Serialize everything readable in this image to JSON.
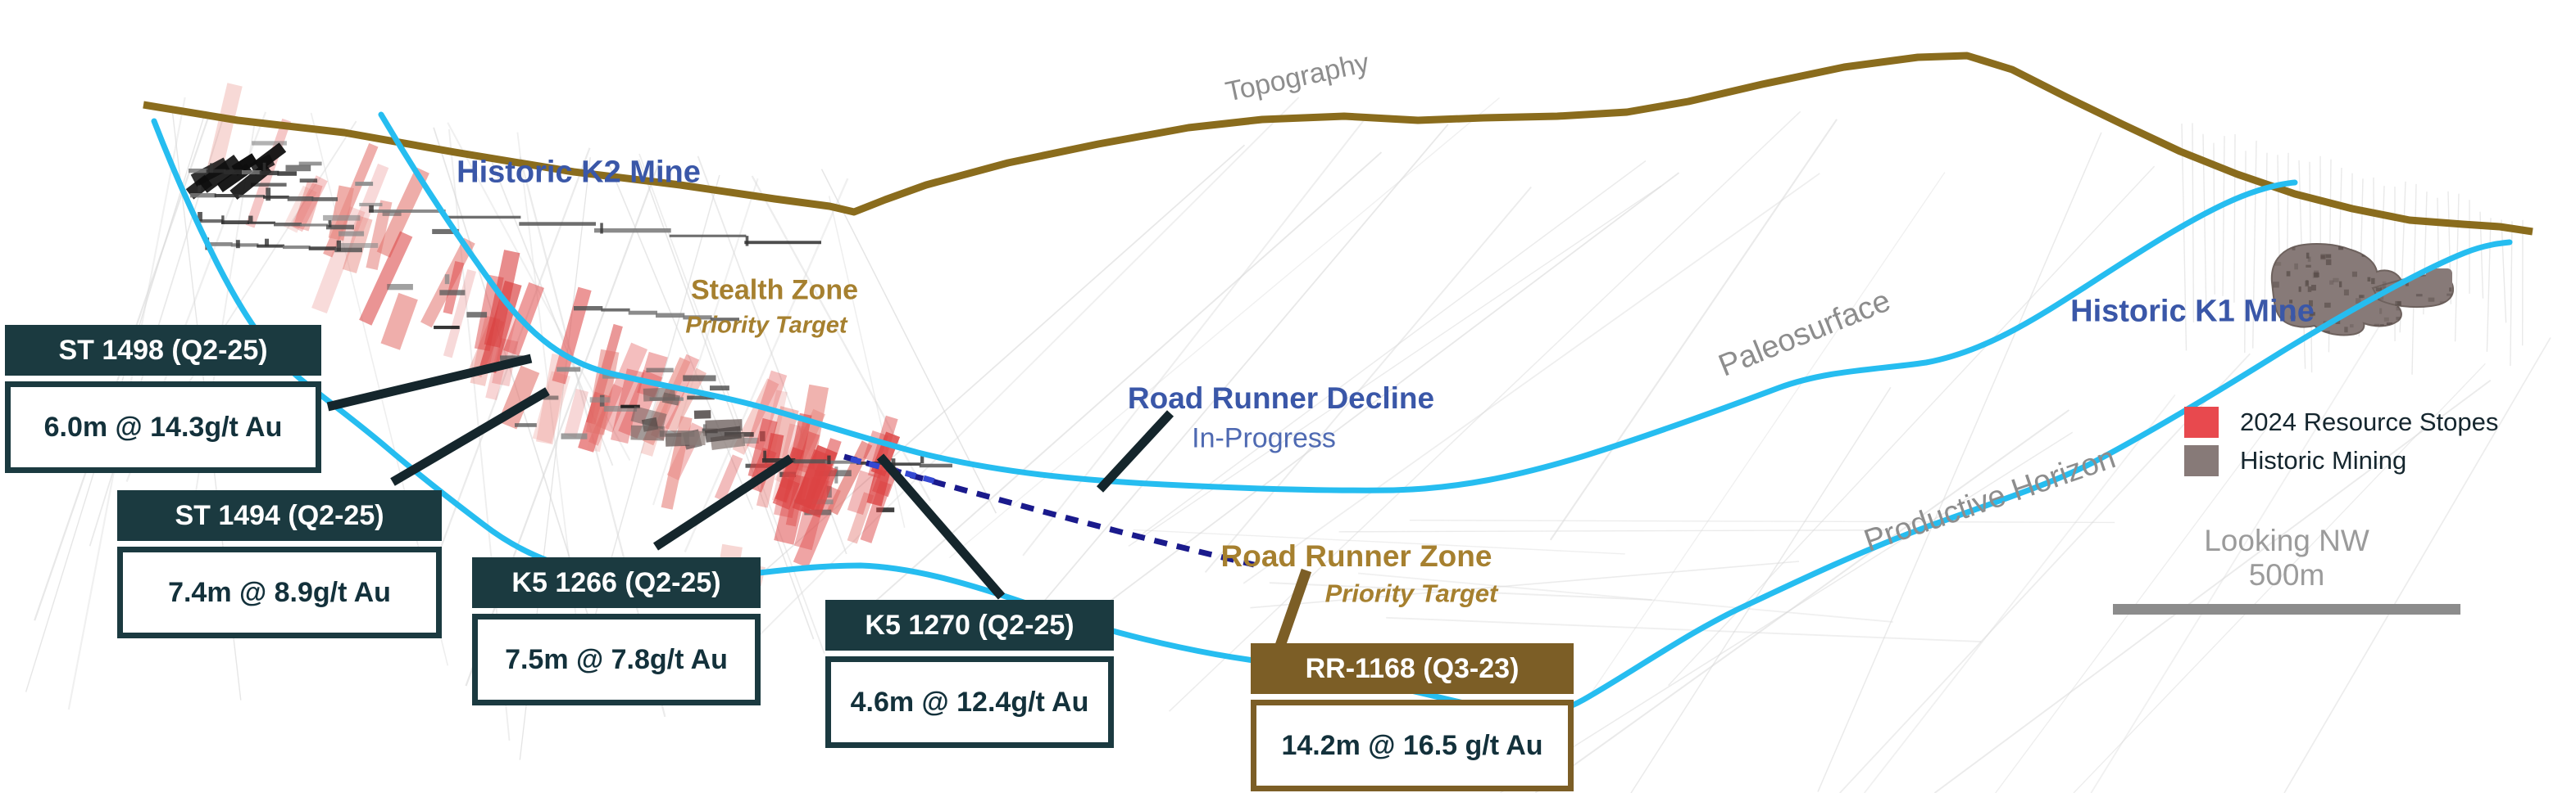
{
  "section": {
    "topography_label": "Topography",
    "mines": {
      "k2": "Historic K2 Mine",
      "k1": "Historic K1 Mine"
    },
    "zones": {
      "stealth": {
        "title": "Stealth Zone",
        "subtitle": "Priority Target"
      },
      "road_runner_decline": {
        "title": "Road Runner Decline",
        "subtitle": "In-Progress"
      },
      "road_runner": {
        "title": "Road Runner Zone",
        "subtitle": "Priority Target"
      }
    },
    "horizons": {
      "paleosurface": "Paleosurface",
      "productive": "Productive Horizon"
    },
    "callouts": [
      {
        "id": "st-1498",
        "header": "ST 1498 (Q2-25)",
        "result": "6.0m @ 14.3g/t Au",
        "theme": "teal"
      },
      {
        "id": "st-1494",
        "header": "ST 1494 (Q2-25)",
        "result": "7.4m @ 8.9g/t Au",
        "theme": "teal"
      },
      {
        "id": "k5-1266",
        "header": "K5 1266 (Q2-25)",
        "result": "7.5m @ 7.8g/t Au",
        "theme": "teal"
      },
      {
        "id": "k5-1270",
        "header": "K5 1270 (Q2-25)",
        "result": "4.6m @ 12.4g/t Au",
        "theme": "teal"
      },
      {
        "id": "rr-1168",
        "header": "RR-1168 (Q3-23)",
        "result": "14.2m @ 16.5 g/t Au",
        "theme": "brown"
      }
    ],
    "legend": {
      "items": [
        {
          "label": "2024 Resource Stopes",
          "color": "#e8494e"
        },
        {
          "label": "Historic Mining",
          "color": "#877a78"
        }
      ]
    },
    "view": {
      "orientation": "Looking NW",
      "scale_bar": "500m"
    },
    "colors": {
      "accent_blue": "#3a57a8",
      "status_blue": "#4f6ab2",
      "gold": "#a6802f",
      "teal_dark": "#1b3a40",
      "brown_dark": "#7c5e26",
      "cyan": "#26bdf0",
      "topo_gold": "#8a6c1d",
      "decline_navy": "#1a1a8c",
      "decline_blue": "#3448d2",
      "leader_dark": "#15262c",
      "stope_red": "#e8494e",
      "historic_gray": "#877a78",
      "label_gray": "#8d8d8d",
      "scalebar_gray": "#8c8c8c"
    }
  }
}
